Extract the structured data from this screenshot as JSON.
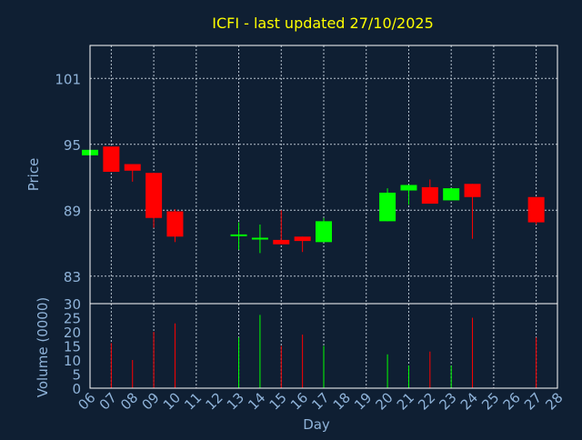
{
  "colors": {
    "background": "#0f1f33",
    "plot_background": "#0f1f33",
    "title": "#ffff00",
    "axis_text": "#8fb3d9",
    "frame": "#ffffff",
    "grid": "#b8c4d0",
    "up": "#00ff00",
    "down": "#ff0000"
  },
  "chart_data": {
    "type": "candlestick",
    "title": "ICFI - last updated 27/10/2025",
    "xlabel": "Day",
    "ylabel": "Price",
    "volume_label": "Volume (0000)",
    "x_ticks": [
      "06",
      "07",
      "08",
      "09",
      "10",
      "11",
      "12",
      "13",
      "14",
      "15",
      "16",
      "17",
      "18",
      "19",
      "20",
      "21",
      "22",
      "23",
      "24",
      "25",
      "26",
      "27",
      "28"
    ],
    "x_grid_days": [
      "07",
      "09",
      "11",
      "13",
      "15",
      "17",
      "19",
      "21",
      "23",
      "25",
      "27"
    ],
    "price_ticks": [
      83,
      89,
      95,
      101
    ],
    "ylim": [
      80.5,
      104
    ],
    "volume_ticks": [
      0,
      5,
      10,
      15,
      20,
      25,
      30
    ],
    "volume_lim": [
      0,
      30
    ],
    "grid": true,
    "candles": [
      {
        "day": "06",
        "open": 94.0,
        "high": 94.5,
        "low": 94.0,
        "close": 94.5,
        "volume": null
      },
      {
        "day": "07",
        "open": 94.8,
        "high": 94.8,
        "low": 92.5,
        "close": 92.5,
        "volume": 16
      },
      {
        "day": "08",
        "open": 93.2,
        "high": 93.2,
        "low": 91.6,
        "close": 92.6,
        "volume": 10
      },
      {
        "day": "09",
        "open": 92.4,
        "high": 92.4,
        "low": 87.4,
        "close": 88.3,
        "volume": 20
      },
      {
        "day": "10",
        "open": 88.9,
        "high": 89.1,
        "low": 86.1,
        "close": 86.6,
        "volume": 23
      },
      {
        "day": "13",
        "open": 86.8,
        "high": 87.9,
        "low": 85.4,
        "close": 86.8,
        "volume": 18
      },
      {
        "day": "14",
        "open": 86.5,
        "high": 87.7,
        "low": 85.1,
        "close": 86.5,
        "volume": 26
      },
      {
        "day": "15",
        "open": 86.3,
        "high": 89.0,
        "low": 86.0,
        "close": 85.9,
        "volume": 15
      },
      {
        "day": "16",
        "open": 86.6,
        "high": 86.6,
        "low": 85.2,
        "close": 86.2,
        "volume": 19
      },
      {
        "day": "17",
        "open": 86.1,
        "high": 88.3,
        "low": 86.1,
        "close": 88.0,
        "volume": 15
      },
      {
        "day": "20",
        "open": 88.0,
        "high": 91.0,
        "low": 88.0,
        "close": 90.6,
        "volume": 12
      },
      {
        "day": "21",
        "open": 90.8,
        "high": 91.3,
        "low": 89.5,
        "close": 91.3,
        "volume": 8
      },
      {
        "day": "22",
        "open": 91.1,
        "high": 91.8,
        "low": 89.6,
        "close": 89.6,
        "volume": 13
      },
      {
        "day": "23",
        "open": 89.9,
        "high": 91.0,
        "low": 89.9,
        "close": 91.0,
        "volume": 8
      },
      {
        "day": "24",
        "open": 91.4,
        "high": 91.4,
        "low": 86.4,
        "close": 90.2,
        "volume": 25
      },
      {
        "day": "27",
        "open": 90.2,
        "high": 90.2,
        "low": 87.7,
        "close": 87.9,
        "volume": 18
      }
    ]
  }
}
